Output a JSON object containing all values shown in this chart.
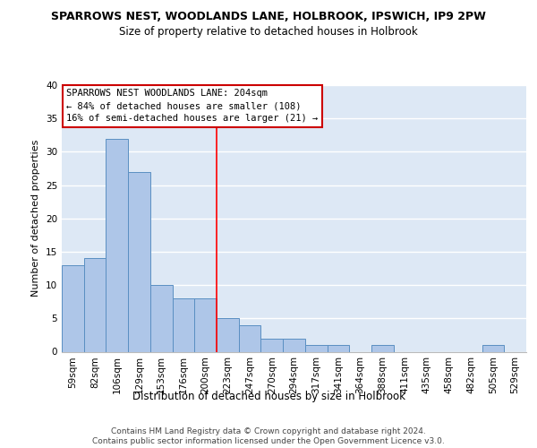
{
  "title": "SPARROWS NEST, WOODLANDS LANE, HOLBROOK, IPSWICH, IP9 2PW",
  "subtitle": "Size of property relative to detached houses in Holbrook",
  "xlabel": "Distribution of detached houses by size in Holbrook",
  "ylabel": "Number of detached properties",
  "categories": [
    "59sqm",
    "82sqm",
    "106sqm",
    "129sqm",
    "153sqm",
    "176sqm",
    "200sqm",
    "223sqm",
    "247sqm",
    "270sqm",
    "294sqm",
    "317sqm",
    "341sqm",
    "364sqm",
    "388sqm",
    "411sqm",
    "435sqm",
    "458sqm",
    "482sqm",
    "505sqm",
    "529sqm"
  ],
  "values": [
    13,
    14,
    32,
    27,
    10,
    8,
    8,
    5,
    4,
    2,
    2,
    1,
    1,
    0,
    1,
    0,
    0,
    0,
    0,
    1,
    0
  ],
  "bar_color": "#aec6e8",
  "bar_edge_color": "#5a8fc2",
  "background_color": "#dde8f5",
  "grid_color": "#ffffff",
  "red_line_x": 6.5,
  "annotation_text": "SPARROWS NEST WOODLANDS LANE: 204sqm\n← 84% of detached houses are smaller (108)\n16% of semi-detached houses are larger (21) →",
  "annotation_box_color": "#ffffff",
  "annotation_box_edge_color": "#cc0000",
  "footer_text": "Contains HM Land Registry data © Crown copyright and database right 2024.\nContains public sector information licensed under the Open Government Licence v3.0.",
  "ylim": [
    0,
    40
  ],
  "yticks": [
    0,
    5,
    10,
    15,
    20,
    25,
    30,
    35,
    40
  ],
  "title_fontsize": 9,
  "subtitle_fontsize": 8.5,
  "ylabel_fontsize": 8,
  "xlabel_fontsize": 8.5,
  "tick_fontsize": 7.5,
  "annotation_fontsize": 7.5,
  "footer_fontsize": 6.5
}
